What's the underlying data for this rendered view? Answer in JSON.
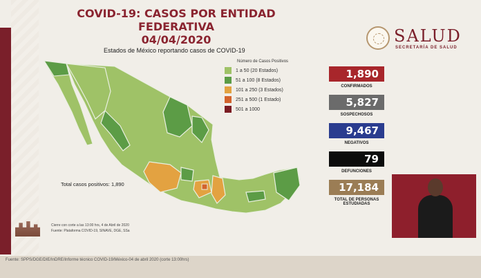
{
  "header": {
    "title_line1": "COVID-19: CASOS POR ENTIDAD FEDERATIVA",
    "title_line2": "04/04/2020"
  },
  "logo": {
    "name": "SALUD",
    "subtitle": "SECRETARÍA DE SALUD"
  },
  "map": {
    "title": "Estados de México reportando casos de COVID-19",
    "legend_header": "Número de Casos Positivos",
    "legend": [
      {
        "label": "1 a    50  (20 Estados)",
        "color": "#9fc267"
      },
      {
        "label": "51 a   100   (8 Estados)",
        "color": "#5c9c46"
      },
      {
        "label": "101 a   250   (3 Estados)",
        "color": "#e3a241"
      },
      {
        "label": "251 a   500   (1 Estado)",
        "color": "#d3632c"
      },
      {
        "label": "501 a 1000",
        "color": "#7b1c23"
      }
    ],
    "total_text": "Total casos positivos: 1,890",
    "note1": "Cierre con corte a las 13:00 hrs, 4 de Abril de 2020",
    "note2": "Fuente: Plataforma COVID-19, SINAVE, DGE, SSa"
  },
  "stats": [
    {
      "value": "1,890",
      "label": "CONFIRMADOS",
      "color": "#a8262b"
    },
    {
      "value": "5,827",
      "label": "SOSPECHOSOS",
      "color": "#6b6b6b"
    },
    {
      "value": "9,467",
      "label": "NEGATIVOS",
      "color": "#2a3c8f"
    },
    {
      "value": "79",
      "label": "DEFUNCIONES",
      "color": "#0c0c0c"
    },
    {
      "value": "17,184",
      "label": "TOTAL DE PERSONAS ESTUDIADAS",
      "color": "#9b7d55"
    }
  ],
  "footer": {
    "source": "Fuente: SPPS/DGE/DIE/InDRE/Informe técnico COVID-19/México-04 de abril 2020 (corte 13:00hrs)"
  }
}
